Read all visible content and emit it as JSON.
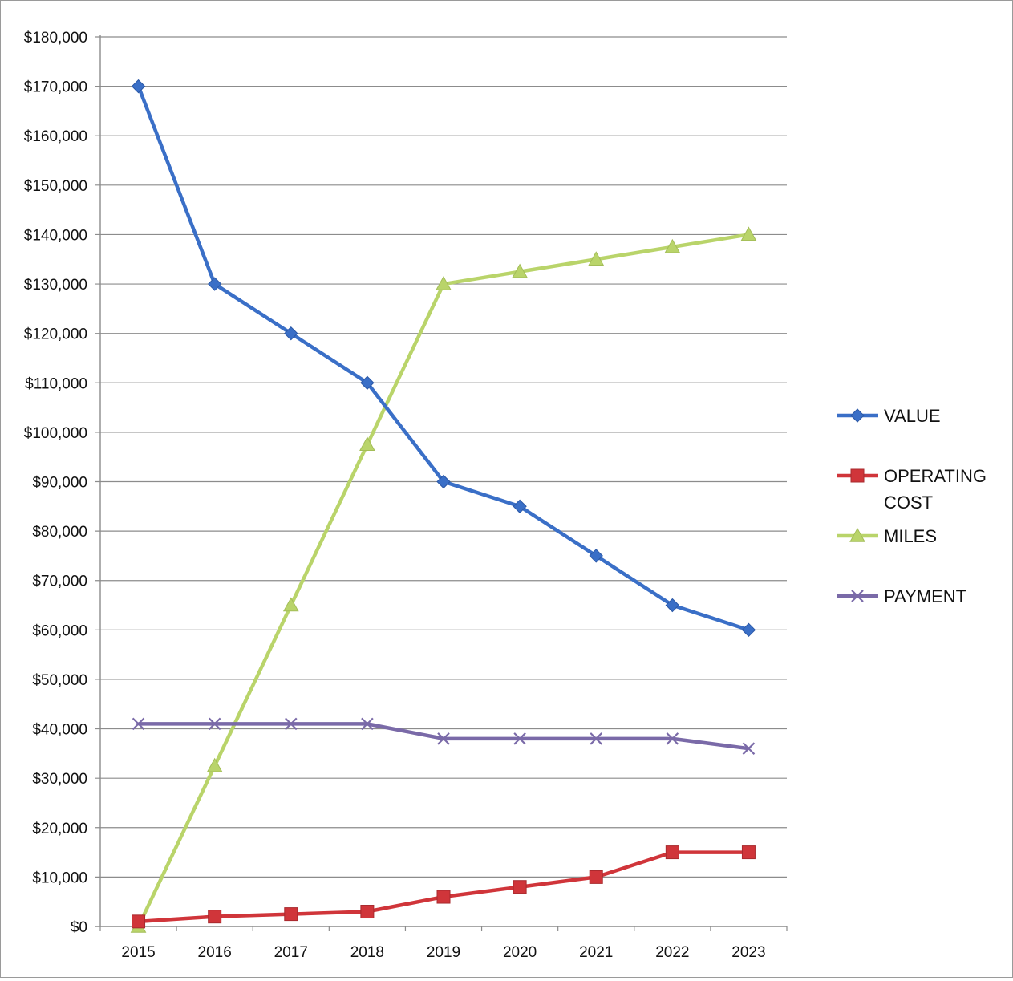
{
  "chart_data": {
    "type": "line",
    "title": "",
    "xlabel": "",
    "ylabel": "",
    "categories": [
      "2015",
      "2016",
      "2017",
      "2018",
      "2019",
      "2020",
      "2021",
      "2022",
      "2023"
    ],
    "ylim": [
      0,
      180000
    ],
    "y_tick_step": 10000,
    "y_tick_labels": [
      "$0",
      "$10,000",
      "$20,000",
      "$30,000",
      "$40,000",
      "$50,000",
      "$60,000",
      "$70,000",
      "$80,000",
      "$90,000",
      "$100,000",
      "$110,000",
      "$120,000",
      "$130,000",
      "$140,000",
      "$150,000",
      "$160,000",
      "$170,000",
      "$180,000"
    ],
    "grid": true,
    "legend_position": "right",
    "series": [
      {
        "name": "VALUE",
        "color": "#3a6fc7",
        "marker": "diamond",
        "values": [
          170000,
          130000,
          120000,
          110000,
          90000,
          85000,
          75000,
          65000,
          60000
        ]
      },
      {
        "name": "OPERATING COST",
        "color": "#d0353a",
        "marker": "square",
        "values": [
          1000,
          2000,
          2500,
          3000,
          6000,
          8000,
          10000,
          15000,
          15000
        ]
      },
      {
        "name": "MILES",
        "color": "#b9d46a",
        "marker": "triangle",
        "values": [
          0,
          32500,
          65000,
          97500,
          130000,
          132500,
          135000,
          137500,
          140000
        ]
      },
      {
        "name": "PAYMENT",
        "color": "#7a6aa8",
        "marker": "x",
        "values": [
          41000,
          41000,
          41000,
          41000,
          38000,
          38000,
          38000,
          38000,
          36000
        ]
      }
    ]
  }
}
